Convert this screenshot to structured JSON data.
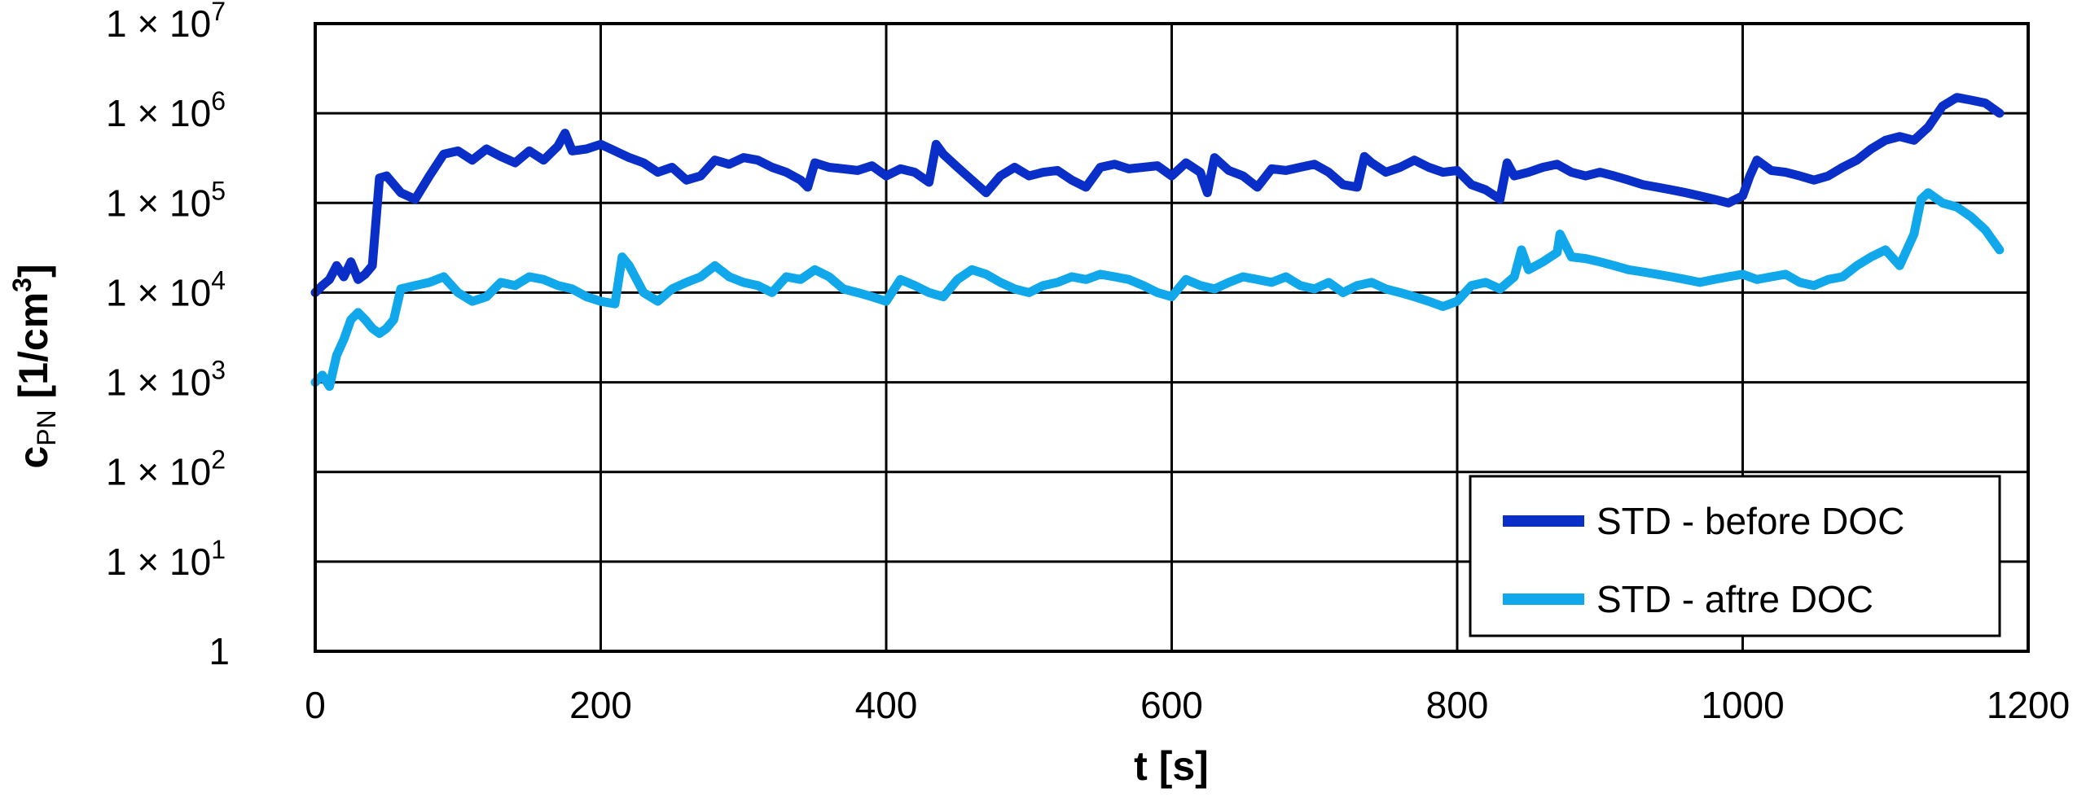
{
  "chart_data": {
    "type": "line",
    "xlabel": "t [s]",
    "ylabel": {
      "main": "c",
      "sub": "PN",
      "unit_open": " [1/cm",
      "unit_sup": "3",
      "unit_close": "]"
    },
    "xlim": [
      0,
      1200
    ],
    "ylim": [
      1,
      10000000
    ],
    "yscale": "log",
    "grid": true,
    "legend_position": "bottom-right",
    "x_ticks": [
      "0",
      "200",
      "400",
      "600",
      "800",
      "1000",
      "1200"
    ],
    "y_ticks": [
      {
        "base": "1",
        "exp": ""
      },
      {
        "base": "1 × 10",
        "exp": "1"
      },
      {
        "base": "1 × 10",
        "exp": "2"
      },
      {
        "base": "1 × 10",
        "exp": "3"
      },
      {
        "base": "1 × 10",
        "exp": "4"
      },
      {
        "base": "1 × 10",
        "exp": "5"
      },
      {
        "base": "1 × 10",
        "exp": "6"
      },
      {
        "base": "1 × 10",
        "exp": "7"
      }
    ],
    "series": [
      {
        "name": "STD - before DOC",
        "color": "#0a2fc9",
        "x": [
          0,
          5,
          10,
          15,
          20,
          25,
          30,
          35,
          40,
          45,
          50,
          60,
          70,
          80,
          90,
          100,
          110,
          120,
          130,
          140,
          150,
          160,
          170,
          175,
          180,
          190,
          200,
          210,
          220,
          230,
          240,
          250,
          260,
          270,
          280,
          290,
          300,
          310,
          320,
          330,
          340,
          345,
          350,
          360,
          370,
          380,
          390,
          400,
          410,
          420,
          430,
          435,
          440,
          450,
          460,
          470,
          480,
          490,
          500,
          510,
          520,
          530,
          540,
          550,
          560,
          570,
          580,
          590,
          600,
          610,
          620,
          625,
          630,
          640,
          650,
          660,
          670,
          680,
          690,
          700,
          710,
          720,
          730,
          735,
          740,
          750,
          760,
          770,
          780,
          790,
          800,
          810,
          820,
          830,
          835,
          840,
          850,
          860,
          870,
          880,
          890,
          900,
          910,
          920,
          930,
          940,
          950,
          960,
          970,
          980,
          990,
          1000,
          1005,
          1010,
          1020,
          1030,
          1040,
          1050,
          1060,
          1070,
          1080,
          1090,
          1100,
          1110,
          1120,
          1130,
          1140,
          1150,
          1160,
          1170,
          1180
        ],
        "y": [
          10000,
          12000,
          14000,
          20000,
          15000,
          22000,
          14000,
          16000,
          20000,
          190000,
          200000,
          130000,
          110000,
          200000,
          350000,
          380000,
          300000,
          400000,
          330000,
          280000,
          380000,
          300000,
          430000,
          600000,
          380000,
          400000,
          450000,
          380000,
          320000,
          280000,
          220000,
          250000,
          180000,
          200000,
          300000,
          270000,
          320000,
          300000,
          250000,
          220000,
          180000,
          150000,
          280000,
          250000,
          240000,
          230000,
          260000,
          200000,
          240000,
          220000,
          170000,
          450000,
          350000,
          250000,
          180000,
          130000,
          200000,
          250000,
          200000,
          220000,
          230000,
          180000,
          150000,
          250000,
          270000,
          240000,
          250000,
          260000,
          200000,
          280000,
          220000,
          130000,
          320000,
          230000,
          200000,
          150000,
          240000,
          230000,
          250000,
          270000,
          220000,
          160000,
          150000,
          330000,
          280000,
          220000,
          250000,
          300000,
          250000,
          220000,
          230000,
          160000,
          140000,
          110000,
          280000,
          200000,
          220000,
          250000,
          270000,
          220000,
          200000,
          220000,
          200000,
          180000,
          160000,
          150000,
          140000,
          130000,
          120000,
          110000,
          100000,
          120000,
          200000,
          300000,
          230000,
          220000,
          200000,
          180000,
          200000,
          250000,
          300000,
          400000,
          500000,
          550000,
          500000,
          700000,
          1200000,
          1500000,
          1400000,
          1300000,
          1000000
        ]
      },
      {
        "name": "STD - aftre DOC",
        "color": "#10a8ea",
        "x": [
          0,
          5,
          10,
          15,
          20,
          25,
          30,
          35,
          40,
          45,
          50,
          55,
          60,
          70,
          80,
          90,
          100,
          110,
          120,
          130,
          140,
          150,
          160,
          170,
          180,
          190,
          200,
          210,
          215,
          220,
          230,
          240,
          250,
          260,
          270,
          280,
          290,
          300,
          310,
          320,
          330,
          340,
          350,
          360,
          370,
          380,
          390,
          400,
          410,
          420,
          430,
          440,
          450,
          460,
          470,
          480,
          490,
          500,
          510,
          520,
          530,
          540,
          550,
          560,
          570,
          580,
          590,
          600,
          610,
          620,
          630,
          640,
          650,
          660,
          670,
          680,
          690,
          700,
          710,
          720,
          730,
          740,
          750,
          760,
          770,
          780,
          790,
          800,
          810,
          820,
          830,
          840,
          845,
          850,
          860,
          870,
          872,
          880,
          890,
          900,
          910,
          920,
          930,
          940,
          950,
          960,
          970,
          980,
          990,
          1000,
          1010,
          1020,
          1030,
          1040,
          1050,
          1060,
          1070,
          1080,
          1090,
          1100,
          1110,
          1120,
          1125,
          1130,
          1140,
          1150,
          1160,
          1170,
          1180
        ],
        "y": [
          1000,
          1200,
          900,
          2000,
          3000,
          5000,
          6000,
          5000,
          4000,
          3500,
          4000,
          5000,
          11000,
          12000,
          13000,
          15000,
          10000,
          8000,
          9000,
          13000,
          12000,
          15000,
          14000,
          12000,
          11000,
          9000,
          8000,
          7500,
          25000,
          20000,
          10000,
          8000,
          11000,
          13000,
          15000,
          20000,
          15000,
          13000,
          12000,
          10000,
          15000,
          14000,
          18000,
          15000,
          11000,
          10000,
          9000,
          8000,
          14000,
          12000,
          10000,
          9000,
          14000,
          18000,
          16000,
          13000,
          11000,
          10000,
          12000,
          13000,
          15000,
          14000,
          16000,
          15000,
          14000,
          12000,
          10000,
          9000,
          14000,
          12000,
          11000,
          13000,
          15000,
          14000,
          13000,
          15000,
          12000,
          11000,
          13000,
          10000,
          12000,
          13000,
          11000,
          10000,
          9000,
          8000,
          7000,
          8000,
          12000,
          13000,
          11000,
          15000,
          30000,
          18000,
          22000,
          28000,
          45000,
          25000,
          24000,
          22000,
          20000,
          18000,
          17000,
          16000,
          15000,
          14000,
          13000,
          14000,
          15000,
          16000,
          14000,
          15000,
          16000,
          13000,
          12000,
          14000,
          15000,
          20000,
          25000,
          30000,
          20000,
          45000,
          110000,
          130000,
          100000,
          90000,
          70000,
          50000,
          30000
        ]
      }
    ]
  }
}
